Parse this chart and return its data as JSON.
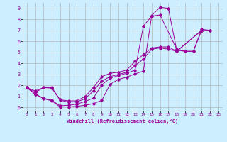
{
  "xlabel": "Windchill (Refroidissement éolien,°C)",
  "bg_color": "#cceeff",
  "line_color": "#990099",
  "grid_color": "#aaaaaa",
  "xlim": [
    -0.5,
    23.5
  ],
  "ylim": [
    -0.3,
    9.5
  ],
  "xticks": [
    0,
    1,
    2,
    3,
    4,
    5,
    6,
    7,
    8,
    9,
    10,
    11,
    12,
    13,
    14,
    15,
    16,
    17,
    18,
    19,
    20,
    21,
    22,
    23
  ],
  "yticks": [
    0,
    1,
    2,
    3,
    4,
    5,
    6,
    7,
    8,
    9
  ],
  "series": [
    [
      1.8,
      1.2,
      0.8,
      0.6,
      0.05,
      0.05,
      0.1,
      0.2,
      0.35,
      0.65,
      2.1,
      2.55,
      2.75,
      3.05,
      3.3,
      8.35,
      9.1,
      9.0,
      5.2,
      5.1,
      5.1,
      7.1,
      7.0
    ],
    [
      1.8,
      1.2,
      0.85,
      0.65,
      0.15,
      0.2,
      0.3,
      0.55,
      0.85,
      2.05,
      2.65,
      2.9,
      3.1,
      3.4,
      7.4,
      8.3,
      8.4,
      5.3,
      5.1,
      5.1,
      7.0,
      7.0
    ],
    [
      1.8,
      1.35,
      1.8,
      1.75,
      0.65,
      0.5,
      0.5,
      0.8,
      1.5,
      2.4,
      2.8,
      3.0,
      3.2,
      3.8,
      4.4,
      5.3,
      5.4,
      5.3,
      5.1,
      7.0
    ],
    [
      1.8,
      1.5,
      1.8,
      1.8,
      0.7,
      0.6,
      0.6,
      1.0,
      1.8,
      2.8,
      3.1,
      3.2,
      3.4,
      4.2,
      4.8,
      5.4,
      5.5,
      5.5,
      5.1,
      7.0
    ]
  ],
  "series_x": [
    [
      0,
      1,
      2,
      3,
      4,
      5,
      6,
      7,
      8,
      9,
      10,
      11,
      12,
      13,
      14,
      15,
      16,
      17,
      18,
      19,
      20,
      21,
      22
    ],
    [
      0,
      1,
      2,
      3,
      4,
      5,
      6,
      7,
      8,
      9,
      10,
      11,
      12,
      13,
      14,
      15,
      16,
      18,
      19,
      20,
      21,
      22
    ],
    [
      0,
      1,
      2,
      3,
      4,
      5,
      6,
      7,
      8,
      9,
      10,
      11,
      12,
      13,
      14,
      15,
      16,
      17,
      18,
      21
    ],
    [
      0,
      1,
      2,
      3,
      4,
      5,
      6,
      7,
      8,
      9,
      10,
      11,
      12,
      13,
      14,
      15,
      16,
      17,
      18,
      21
    ]
  ]
}
